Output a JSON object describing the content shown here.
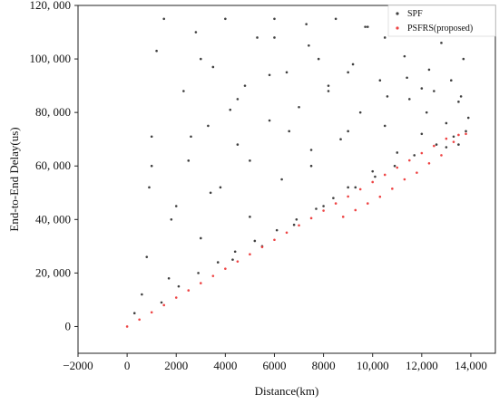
{
  "chart_data": {
    "type": "scatter",
    "xlabel": "Distance(km)",
    "ylabel": "End-to-End Delay(us)",
    "xlim": [
      -2000,
      15000
    ],
    "ylim": [
      -10000,
      120000
    ],
    "x_ticks": [
      -2000,
      0,
      2000,
      4000,
      6000,
      8000,
      10000,
      12000,
      14000
    ],
    "x_tick_labels": [
      "−2000",
      "0",
      "2000",
      "4000",
      "6000",
      "8000",
      "10,000",
      "12,000",
      "14,000"
    ],
    "y_ticks": [
      0,
      20000,
      40000,
      60000,
      80000,
      100000,
      120000
    ],
    "y_tick_labels": [
      "0",
      "20, 000",
      "40, 000",
      "60, 000",
      "80, 000",
      "100, 000",
      "120, 000"
    ],
    "grid": false,
    "legend_position": "top-right",
    "series": [
      {
        "name": "SPF",
        "color": "#404040",
        "x": [
          300,
          600,
          800,
          900,
          1000,
          1200,
          1500,
          1700,
          2000,
          2300,
          2500,
          2800,
          3000,
          3300,
          3500,
          3800,
          4000,
          4300,
          4500,
          4800,
          5000,
          5300,
          5500,
          5800,
          6000,
          6300,
          6500,
          6800,
          7000,
          7300,
          7500,
          7800,
          8000,
          8200,
          8500,
          8700,
          9000,
          9200,
          9500,
          9700,
          10000,
          10300,
          10500,
          10800,
          11000,
          11300,
          11500,
          11800,
          12000,
          12300,
          12500,
          12800,
          13000,
          13200,
          13500,
          13700,
          1400,
          2100,
          2900,
          3700,
          4400,
          5200,
          6100,
          6900,
          7700,
          8400,
          9300,
          10100,
          10900,
          11700,
          12600,
          13300,
          13800,
          1000,
          1800,
          2600,
          3400,
          4200,
          5000,
          5800,
          6600,
          7400,
          8200,
          9000,
          9800,
          10600,
          11400,
          12200,
          13000,
          13600,
          13900,
          3000,
          4500,
          6000,
          7500,
          9000,
          10500,
          12000,
          13500
        ],
        "y": [
          5000,
          12000,
          26000,
          52000,
          71000,
          103000,
          115000,
          18000,
          45000,
          88000,
          62000,
          110000,
          33000,
          75000,
          97000,
          52000,
          115000,
          25000,
          68000,
          90000,
          41000,
          108000,
          30000,
          77000,
          115000,
          55000,
          95000,
          38000,
          82000,
          113000,
          60000,
          100000,
          45000,
          88000,
          115000,
          70000,
          52000,
          98000,
          80000,
          112000,
          58000,
          92000,
          75000,
          115000,
          65000,
          101000,
          85000,
          110000,
          72000,
          96000,
          88000,
          106000,
          76000,
          92000,
          84000,
          100000,
          9000,
          15000,
          20000,
          24000,
          28000,
          32000,
          36000,
          40000,
          44000,
          48000,
          52000,
          56000,
          60000,
          64000,
          68000,
          71000,
          73000,
          60000,
          40000,
          71000,
          50000,
          81000,
          62000,
          94000,
          73000,
          105000,
          90000,
          73000,
          112000,
          86000,
          93000,
          80000,
          67000,
          86000,
          78000,
          100000,
          85000,
          108000,
          66000,
          95000,
          108000,
          89000,
          68000
        ]
      },
      {
        "name": "PSFRS(proposed)",
        "color": "#ee4444",
        "x": [
          0,
          500,
          1000,
          1500,
          2000,
          2500,
          3000,
          3500,
          4000,
          4500,
          5000,
          5500,
          6000,
          6500,
          7000,
          7500,
          8000,
          8500,
          9000,
          9500,
          10000,
          10500,
          11000,
          11500,
          12000,
          12500,
          13000,
          13500,
          13800,
          8800,
          9300,
          9800,
          10300,
          10800,
          11300,
          11800,
          12300,
          12800,
          13300
        ],
        "y": [
          0,
          2600,
          5300,
          8000,
          10800,
          13500,
          16200,
          18900,
          21600,
          24300,
          27000,
          29700,
          32400,
          35100,
          37800,
          40500,
          43300,
          46000,
          48600,
          51300,
          54000,
          56700,
          59400,
          62100,
          64800,
          67500,
          70200,
          71600,
          72000,
          41000,
          43500,
          46000,
          48500,
          51500,
          55000,
          57500,
          61000,
          64000,
          69000
        ]
      }
    ]
  }
}
